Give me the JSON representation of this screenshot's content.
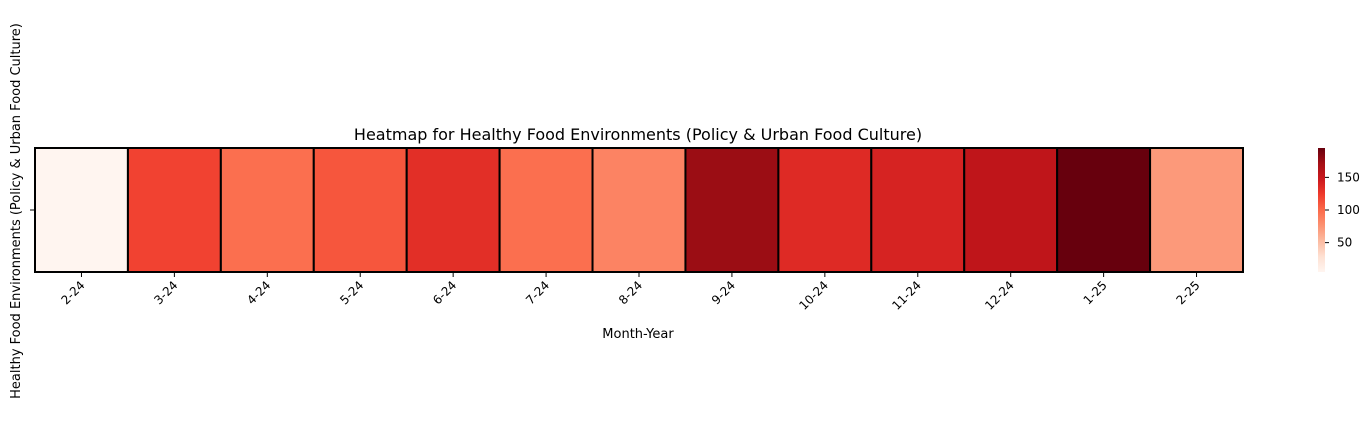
{
  "chart_data": {
    "type": "heatmap",
    "title": "Heatmap for Healthy Food Environments (Policy & Urban Food Culture)",
    "xlabel": "Month-Year",
    "ylabel": "Healthy Food Environments (Policy & Urban Food Culture)",
    "categories": [
      "2-24",
      "3-24",
      "4-24",
      "5-24",
      "6-24",
      "7-24",
      "8-24",
      "9-24",
      "10-24",
      "11-24",
      "12-24",
      "1-25",
      "2-25"
    ],
    "y_categories": [
      ""
    ],
    "values": [
      5,
      120,
      97,
      110,
      132,
      97,
      85,
      175,
      135,
      140,
      155,
      195,
      72
    ],
    "colorscale": "Reds",
    "colorbar": {
      "range": [
        5,
        195
      ],
      "ticks": [
        "50",
        "100",
        "150"
      ],
      "tick_values": [
        50,
        100,
        150
      ]
    },
    "cell_border_color": "#000000"
  }
}
